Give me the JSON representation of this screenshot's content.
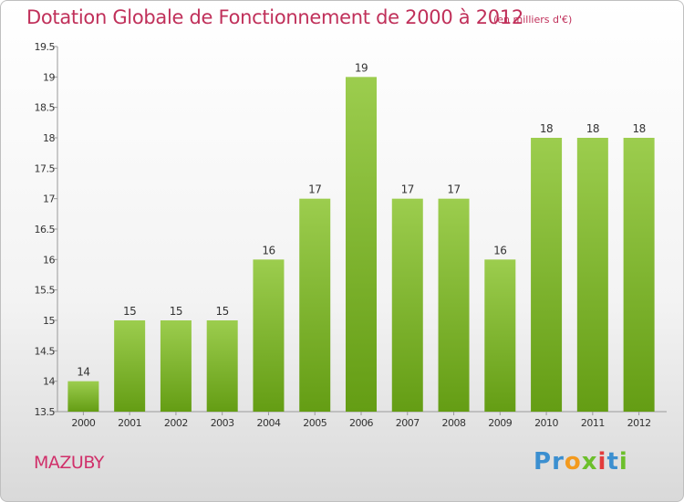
{
  "header": {
    "title": "Dotation Globale de Fonctionnement de 2000 à 2012",
    "unit": "(en milliers d'€)"
  },
  "footer": {
    "commune": "MAZUBY",
    "brand_letters": [
      {
        "ch": "P",
        "color": "#3b8fd0"
      },
      {
        "ch": "r",
        "color": "#3b8fd0"
      },
      {
        "ch": "o",
        "color": "#f39a1e"
      },
      {
        "ch": "x",
        "color": "#6cbf2b"
      },
      {
        "ch": "i",
        "color": "#e23c3c"
      },
      {
        "ch": "t",
        "color": "#3b8fd0"
      },
      {
        "ch": "i",
        "color": "#6cbf2b"
      }
    ]
  },
  "colors": {
    "bar_top": "#9ccd4e",
    "bar_bottom": "#649d14",
    "title": "#c0305a"
  },
  "chart_data": {
    "type": "bar",
    "categories": [
      "2000",
      "2001",
      "2002",
      "2003",
      "2004",
      "2005",
      "2006",
      "2007",
      "2008",
      "2009",
      "2010",
      "2011",
      "2012"
    ],
    "values": [
      14,
      15,
      15,
      15,
      16,
      17,
      19,
      17,
      17,
      16,
      18,
      18,
      18
    ],
    "value_labels": [
      "14",
      "15",
      "15",
      "15",
      "16",
      "17",
      "19",
      "17",
      "17",
      "16",
      "18",
      "18",
      "18"
    ],
    "ylim": [
      13.5,
      19.5
    ],
    "yticks": [
      13.5,
      14,
      14.5,
      15,
      15.5,
      16,
      16.5,
      17,
      17.5,
      18,
      18.5,
      19,
      19.5
    ],
    "ytick_labels": [
      "13.5",
      "14",
      "14.5",
      "15",
      "15.5",
      "16",
      "16.5",
      "17",
      "17.5",
      "18",
      "18.5",
      "19",
      "19.5"
    ],
    "grid": false
  }
}
